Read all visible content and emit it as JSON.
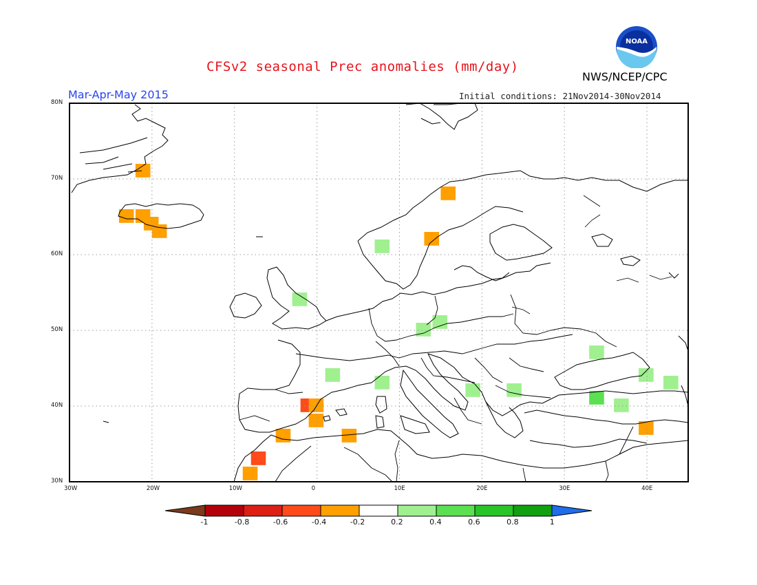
{
  "header": {
    "title": "CFSv2 seasonal Prec anomalies (mm/day)",
    "agency": "NWS/NCEP/CPC",
    "season": "Mar-Apr-May 2015",
    "initial_conditions": "Initial conditions: 21Nov2014-30Nov2014",
    "logo_text": "NOAA"
  },
  "map": {
    "lon_range": [
      -30,
      45
    ],
    "lat_range": [
      30,
      80
    ],
    "x_ticks": [
      "30W",
      "20W",
      "10W",
      "0",
      "10E",
      "20E",
      "30E",
      "40E"
    ],
    "y_ticks": [
      "80N",
      "70N",
      "60N",
      "50N",
      "40N",
      "30N"
    ],
    "colors": {
      "coast": "#000000",
      "grid": "#9a9a9a",
      "orange": "#ff9f00",
      "red": "#e8201a",
      "light_green": "#a0f090"
    }
  },
  "chart_data": {
    "type": "heatmap",
    "title": "CFSv2 seasonal Prec anomalies (mm/day)",
    "units": "mm/day",
    "grid_resolution_deg": 1,
    "cells": [
      {
        "lon": -22,
        "lat": 71,
        "value": -0.3
      },
      {
        "lon": -24,
        "lat": 65,
        "value": -0.3
      },
      {
        "lon": -22,
        "lat": 65,
        "value": -0.3
      },
      {
        "lon": -21,
        "lat": 64,
        "value": -0.3
      },
      {
        "lon": -20,
        "lat": 63,
        "value": -0.3
      },
      {
        "lon": 13,
        "lat": 62,
        "value": -0.3
      },
      {
        "lon": 15,
        "lat": 68,
        "value": -0.3
      },
      {
        "lon": 7,
        "lat": 61,
        "value": 0.3
      },
      {
        "lon": -3,
        "lat": 54,
        "value": 0.3
      },
      {
        "lon": 12,
        "lat": 50,
        "value": 0.3
      },
      {
        "lon": 14,
        "lat": 51,
        "value": 0.3
      },
      {
        "lon": 1,
        "lat": 44,
        "value": 0.3
      },
      {
        "lon": 7,
        "lat": 43,
        "value": 0.3
      },
      {
        "lon": 18,
        "lat": 42,
        "value": 0.3
      },
      {
        "lon": 23,
        "lat": 42,
        "value": 0.3
      },
      {
        "lon": 33,
        "lat": 47,
        "value": 0.3
      },
      {
        "lon": 39,
        "lat": 44,
        "value": 0.3
      },
      {
        "lon": 42,
        "lat": 43,
        "value": 0.3
      },
      {
        "lon": 33,
        "lat": 41,
        "value": 0.5
      },
      {
        "lon": 36,
        "lat": 40,
        "value": 0.3
      },
      {
        "lon": -2,
        "lat": 40,
        "value": -0.5
      },
      {
        "lon": -1,
        "lat": 40,
        "value": -0.3
      },
      {
        "lon": -1,
        "lat": 38,
        "value": -0.3
      },
      {
        "lon": -5,
        "lat": 36,
        "value": -0.3
      },
      {
        "lon": 3,
        "lat": 36,
        "value": -0.3
      },
      {
        "lon": -8,
        "lat": 33,
        "value": -0.5
      },
      {
        "lon": -9,
        "lat": 31,
        "value": -0.3
      },
      {
        "lon": 39,
        "lat": 37,
        "value": -0.3
      }
    ],
    "colorbar": {
      "labels": [
        "-1",
        "-0.8",
        "-0.6",
        "-0.4",
        "-0.2",
        "0.2",
        "0.4",
        "0.6",
        "0.8",
        "1"
      ],
      "colors": [
        "#7a3a1c",
        "#b4000a",
        "#dc1e14",
        "#ff4a1a",
        "#ff9f00",
        "#ffffff",
        "#a0f090",
        "#5ae050",
        "#28c428",
        "#10a010",
        "#1e6eeb"
      ]
    }
  }
}
